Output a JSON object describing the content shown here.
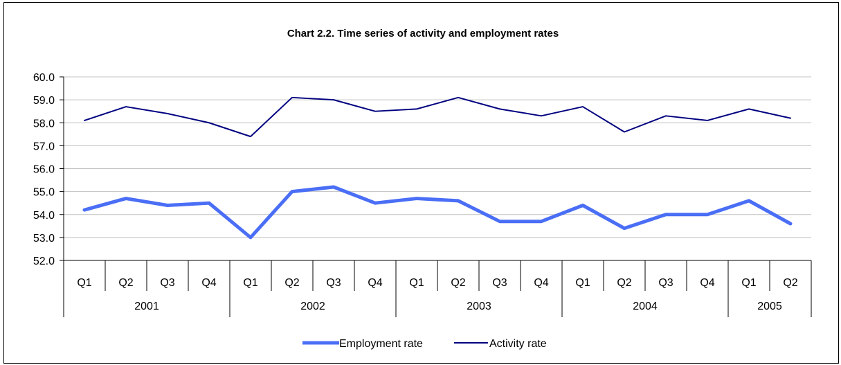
{
  "chart_data": {
    "type": "line",
    "title": "Chart 2.2.  Time series of activity and employment rates",
    "xlabel": "",
    "ylabel": "",
    "ylim": [
      52.0,
      60.0
    ],
    "ytick_step": 1.0,
    "y_ticks": [
      "52.0",
      "53.0",
      "54.0",
      "55.0",
      "56.0",
      "57.0",
      "58.0",
      "59.0",
      "60.0"
    ],
    "categories": [
      "Q1",
      "Q2",
      "Q3",
      "Q4",
      "Q1",
      "Q2",
      "Q3",
      "Q4",
      "Q1",
      "Q2",
      "Q3",
      "Q4",
      "Q1",
      "Q2",
      "Q3",
      "Q4",
      "Q1",
      "Q2"
    ],
    "year_groups": [
      {
        "label": "2001",
        "count": 4
      },
      {
        "label": "2002",
        "count": 4
      },
      {
        "label": "2003",
        "count": 4
      },
      {
        "label": "2004",
        "count": 4
      },
      {
        "label": "2005",
        "count": 2
      }
    ],
    "series": [
      {
        "name": "Employment rate",
        "color": "#4a6ef5",
        "line_style": "thick",
        "values": [
          54.2,
          54.7,
          54.4,
          54.5,
          53.0,
          55.0,
          55.2,
          54.5,
          54.7,
          54.6,
          53.7,
          53.7,
          54.4,
          53.4,
          54.0,
          54.0,
          54.6,
          53.6
        ]
      },
      {
        "name": "Activity rate",
        "color": "#000080",
        "line_style": "thin",
        "values": [
          58.1,
          58.7,
          58.4,
          58.0,
          57.4,
          59.1,
          59.0,
          58.5,
          58.6,
          59.1,
          58.6,
          58.3,
          58.7,
          57.6,
          58.3,
          58.1,
          58.6,
          58.2
        ]
      }
    ],
    "grid": true,
    "legend": "bottom-center"
  }
}
